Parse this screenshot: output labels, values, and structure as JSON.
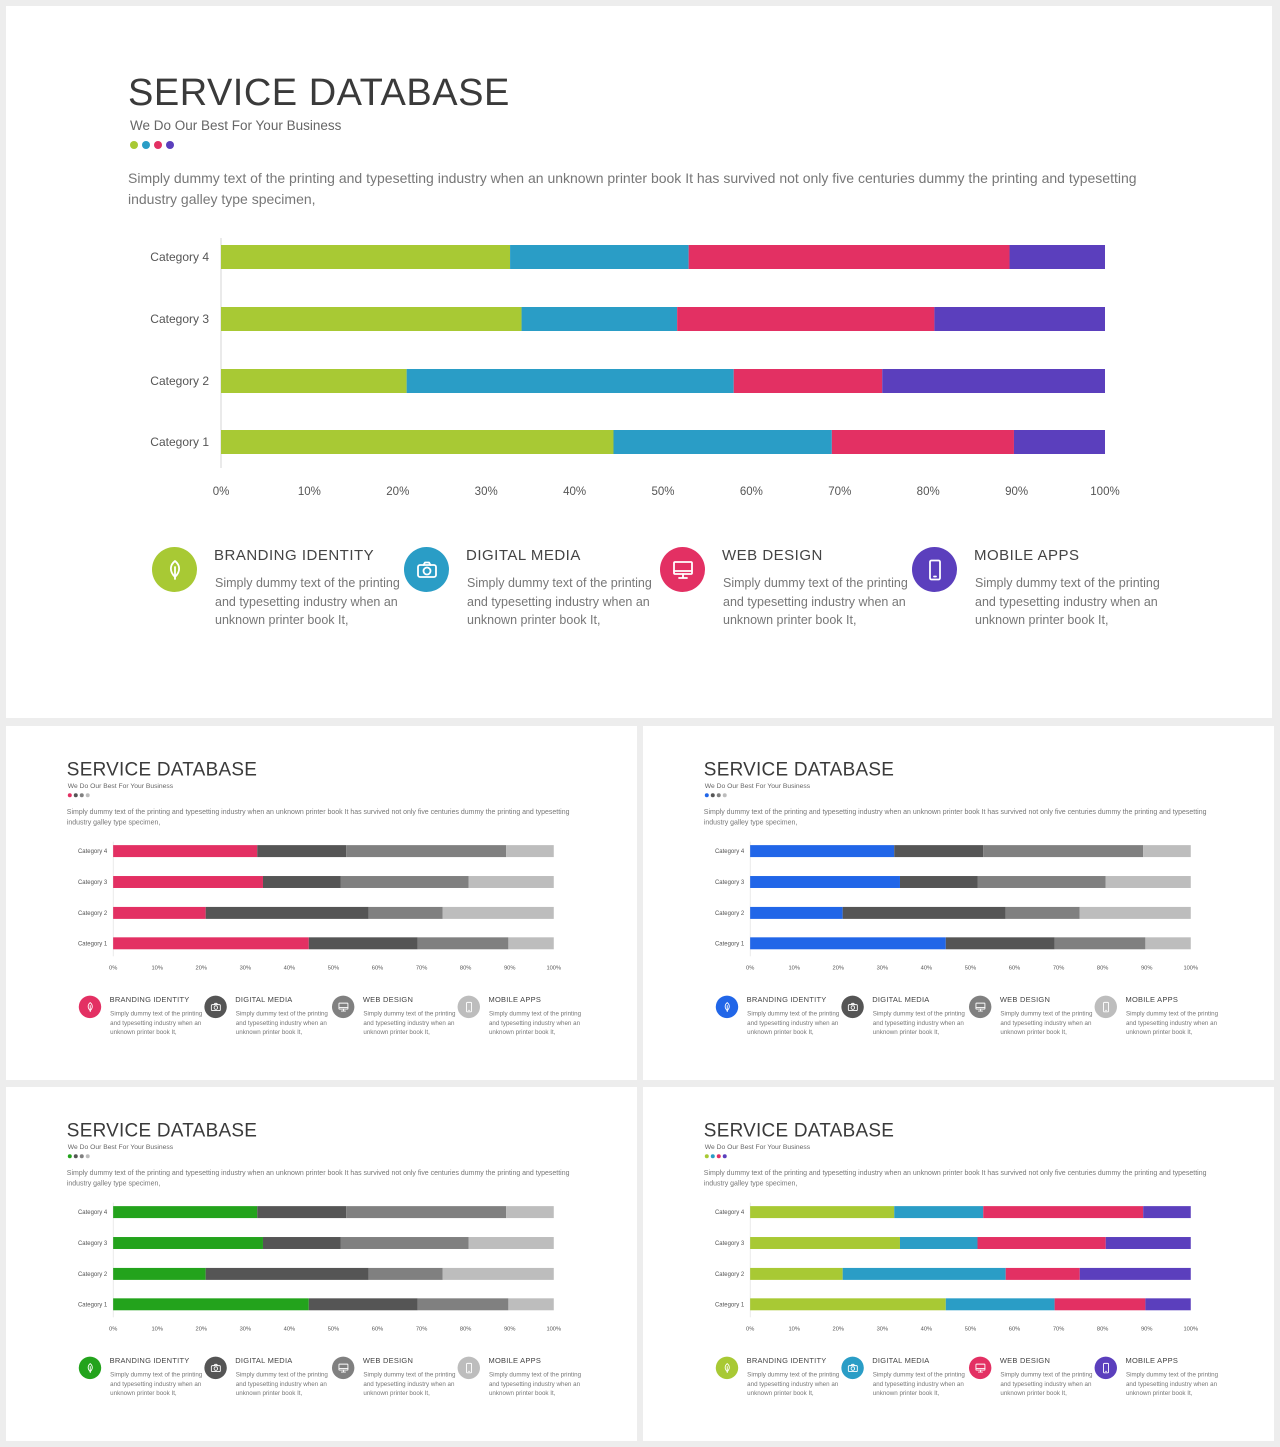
{
  "slides": [
    {
      "title": "SERVICE DATABASE",
      "subtitle": "We Do Our Best For Your Business",
      "intro": "Simply dummy text of the printing  and typesetting industry when  an unknown printer  book It has survived not only five centuries  dummy  the printing  and typesetting industry galley type specimen,",
      "colors": [
        "#a8c934",
        "#2a9dc6",
        "#e33063",
        "#5b3fbd"
      ],
      "icon_colors": [
        "#a8c934",
        "#2a9dc6",
        "#e33063",
        "#5b3fbd"
      ]
    },
    {
      "title": "SERVICE DATABASE",
      "subtitle": "We Do Our Best For Your Business",
      "intro": "Simply dummy text of the printing  and typesetting industry when  an unknown printer  book It has survived not only five centuries  dummy  the printing  and typesetting industry galley type specimen,",
      "colors": [
        "#e33063",
        "#555555",
        "#808080",
        "#bdbdbd"
      ],
      "icon_colors": [
        "#e33063",
        "#555555",
        "#808080",
        "#bdbdbd"
      ]
    },
    {
      "title": "SERVICE DATABASE",
      "subtitle": "We Do Our Best For Your Business",
      "intro": "Simply dummy text of the printing  and typesetting industry when  an unknown printer  book It has survived not only five centuries  dummy  the printing  and typesetting industry galley type specimen,",
      "colors": [
        "#2166e8",
        "#555555",
        "#808080",
        "#bdbdbd"
      ],
      "icon_colors": [
        "#2166e8",
        "#555555",
        "#808080",
        "#bdbdbd"
      ]
    },
    {
      "title": "SERVICE DATABASE",
      "subtitle": "We Do Our Best For Your Business",
      "intro": "Simply dummy text of the printing  and typesetting industry when  an unknown printer  book It has survived not only five centuries  dummy  the printing  and typesetting industry galley type specimen,",
      "colors": [
        "#23a31c",
        "#555555",
        "#808080",
        "#bdbdbd"
      ],
      "icon_colors": [
        "#23a31c",
        "#555555",
        "#808080",
        "#bdbdbd"
      ]
    },
    {
      "title": "SERVICE DATABASE",
      "subtitle": "We Do Our Best For Your Business",
      "intro": "Simply dummy text of the printing  and typesetting industry when  an unknown printer  book It has survived not only five centuries  dummy  the printing  and typesetting industry galley type specimen,",
      "colors": [
        "#a8c934",
        "#2a9dc6",
        "#e33063",
        "#5b3fbd"
      ],
      "icon_colors": [
        "#a8c934",
        "#2a9dc6",
        "#e33063",
        "#5b3fbd"
      ]
    }
  ],
  "features": [
    {
      "title": "BRANDING  IDENTITY",
      "text": "Simply dummy text of the printing  and typesetting industry when an unknown printer book It,",
      "icon": "leaf-icon"
    },
    {
      "title": "DIGITAL  MEDIA",
      "text": "Simply dummy text of the printing  and typesetting industry when an unknown printer book It,",
      "icon": "camera-icon"
    },
    {
      "title": "WEB DESIGN",
      "text": "Simply dummy text of the printing  and typesetting industry when an unknown printer book It,",
      "icon": "monitor-icon"
    },
    {
      "title": "MOBILE APPS",
      "text": "Simply dummy text of the printing  and typesetting industry when an unknown printer book It,",
      "icon": "smartphone-icon"
    }
  ],
  "chart_data": {
    "type": "bar",
    "orientation": "horizontal",
    "stacked": "100%",
    "categories": [
      "Category 1",
      "Category 2",
      "Category 3",
      "Category 4"
    ],
    "series": [
      {
        "values": [
          44.4,
          21.0,
          34.0,
          32.7
        ]
      },
      {
        "values": [
          24.7,
          37.0,
          17.6,
          20.2
        ]
      },
      {
        "values": [
          20.6,
          16.8,
          29.1,
          36.3
        ]
      },
      {
        "values": [
          10.3,
          25.2,
          19.3,
          10.8
        ]
      }
    ],
    "xticks": [
      "0%",
      "10%",
      "20%",
      "30%",
      "40%",
      "50%",
      "60%",
      "70%",
      "80%",
      "90%",
      "100%"
    ],
    "xlim": [
      0,
      100
    ],
    "legend": "none"
  }
}
